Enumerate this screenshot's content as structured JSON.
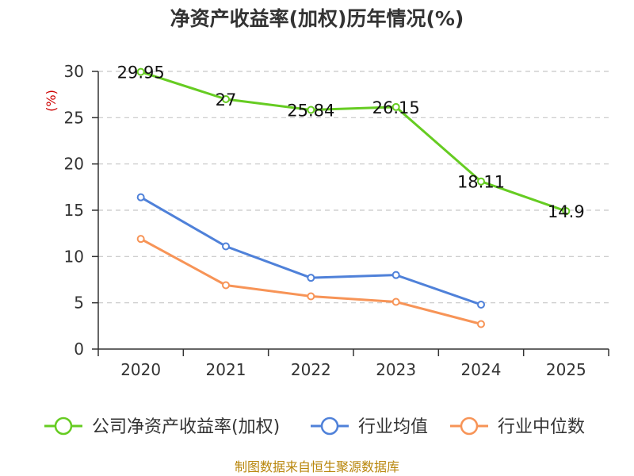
{
  "chart_data": {
    "type": "line",
    "title": "净资产收益率(加权)历年情况(%)",
    "ylabel": "(%)",
    "xlabel": "",
    "categories": [
      "2020",
      "2021",
      "2022",
      "2023",
      "2024",
      "2025"
    ],
    "ylim": [
      0,
      30
    ],
    "yticks": [
      0,
      5,
      10,
      15,
      20,
      25,
      30
    ],
    "grid": true,
    "legend_position": "bottom",
    "series": [
      {
        "name": "公司净资产收益率(加权)",
        "color": "#66cc22",
        "values": [
          29.95,
          27,
          25.84,
          26.15,
          18.11,
          14.9
        ],
        "data_labels": [
          "29.95",
          "27",
          "25.84",
          "26.15",
          "18.11",
          "14.9"
        ]
      },
      {
        "name": "行业均值",
        "color": "#4f81d9",
        "values": [
          16.4,
          11.1,
          7.7,
          8.0,
          4.8,
          null
        ]
      },
      {
        "name": "行业中位数",
        "color": "#f79457",
        "values": [
          11.9,
          6.9,
          5.7,
          5.1,
          2.7,
          null
        ]
      }
    ],
    "source": "制图数据来自恒生聚源数据库"
  }
}
